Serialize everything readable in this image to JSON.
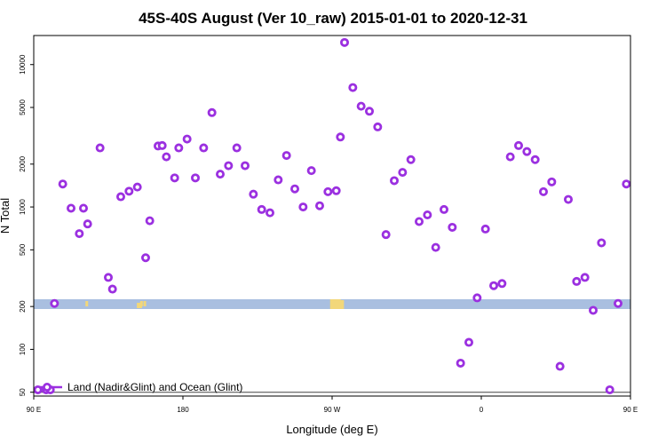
{
  "chart_data": {
    "type": "scatter",
    "title": "45S-40S August (Ver 10_raw)   2015-01-01 to 2020-12-31",
    "xlabel": "Longitude (deg E)",
    "ylabel": "N Total",
    "x_scale": "linear",
    "y_scale": "log",
    "xlim": [
      90,
      450
    ],
    "ylim": [
      47,
      16000
    ],
    "x_ticks": [
      {
        "value": 90,
        "label": "90 E"
      },
      {
        "value": 180,
        "label": "180"
      },
      {
        "value": 270,
        "label": "90 W"
      },
      {
        "value": 360,
        "label": "0"
      },
      {
        "value": 450,
        "label": "90 E"
      },
      {
        "value": 540,
        "label": "180"
      }
    ],
    "y_ticks": [
      {
        "value": 50,
        "label": "50"
      },
      {
        "value": 100,
        "label": "100"
      },
      {
        "value": 200,
        "label": "200"
      },
      {
        "value": 500,
        "label": "500"
      },
      {
        "value": 1000,
        "label": "1000"
      },
      {
        "value": 2000,
        "label": "2000"
      },
      {
        "value": 5000,
        "label": "5000"
      },
      {
        "value": 10000,
        "label": "10000"
      }
    ],
    "grid": false,
    "legend": {
      "position": "bottom-left",
      "entries": [
        "Land (Nadir&Glint) and Ocean (Glint)"
      ]
    },
    "land_ocean_strip": {
      "ocean_color": "#a9bfe0",
      "land_color": "#f2d77a",
      "land_longitudes": [
        122,
        153,
        155,
        154.5,
        157,
        272,
        274,
        276,
        488,
        514,
        530
      ]
    },
    "colors": {
      "marker": "#9b30e0",
      "axis": "#000000",
      "ref_line": "#444444"
    },
    "series": [
      {
        "name": "Land (Nadir&Glint) and Ocean (Glint)",
        "x": [
          92.5,
          97.5,
          100,
          102.5,
          107.5,
          112.5,
          117.5,
          120,
          122.5,
          130,
          135,
          137.5,
          142.5,
          147.5,
          152.5,
          157.5,
          160,
          165,
          167.5,
          170,
          175,
          177.5,
          182.5,
          187.5,
          192.5,
          197.5,
          202.5,
          207.5,
          212.5,
          217.5,
          222.5,
          227.5,
          232.5,
          237.5,
          242.5,
          247.5,
          252.5,
          257.5,
          262.5,
          267.5,
          272.5,
          275,
          277.5,
          282.5,
          287.5,
          292.5,
          297.5,
          302.5,
          307.5,
          312.5,
          317.5,
          322.5,
          327.5,
          332.5,
          337.5,
          342.5,
          347.5,
          352.5,
          357.5,
          362.5,
          367.5,
          372.5,
          377.5,
          382.5,
          387.5,
          392.5,
          397.5,
          402.5,
          407.5,
          412.5,
          417.5,
          422.5,
          427.5,
          432.5,
          437.5,
          442.5,
          447.5
        ],
        "y": [
          52,
          52,
          52,
          210,
          1450,
          980,
          650,
          980,
          760,
          2600,
          320,
          265,
          1180,
          1290,
          1380,
          440,
          800,
          2680,
          2700,
          2250,
          1600,
          2600,
          3000,
          1600,
          2600,
          4600,
          1700,
          1950,
          2600,
          1950,
          1230,
          960,
          910,
          1550,
          2300,
          1340,
          1000,
          1800,
          1020,
          1280,
          1300,
          3100,
          14300,
          6900,
          5100,
          4700,
          3650,
          640,
          1530,
          1750,
          2150,
          790,
          880,
          520,
          960,
          720,
          80,
          112,
          230,
          700,
          280,
          290,
          2250,
          2700,
          2450,
          2150,
          1280,
          1500,
          76,
          1130,
          300,
          320,
          188,
          560,
          52,
          210,
          1450
        ]
      }
    ]
  }
}
